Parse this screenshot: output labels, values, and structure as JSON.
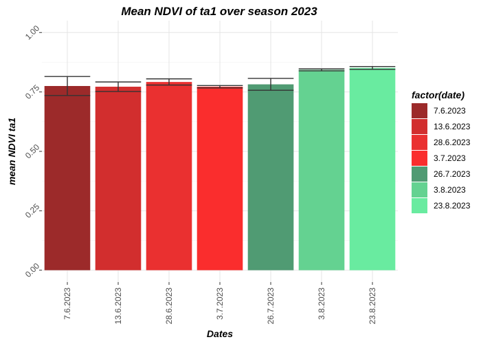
{
  "chart_data": {
    "type": "bar",
    "title": "Mean NDVI of ta1 over season 2023",
    "xlabel": "Dates",
    "ylabel": "mean NDVI ta1",
    "categories": [
      "7.6.2023",
      "13.6.2023",
      "28.6.2023",
      "3.7.2023",
      "26.7.2023",
      "3.8.2023",
      "23.8.2023"
    ],
    "values": [
      0.775,
      0.772,
      0.792,
      0.772,
      0.782,
      0.843,
      0.851
    ],
    "error_low": [
      0.735,
      0.752,
      0.779,
      0.767,
      0.757,
      0.839,
      0.845
    ],
    "error_high": [
      0.815,
      0.792,
      0.805,
      0.777,
      0.807,
      0.847,
      0.857
    ],
    "colors": [
      "#9C2A2A",
      "#D22E2E",
      "#EA3030",
      "#FA2D2D",
      "#509B73",
      "#64D291",
      "#69EBA0"
    ],
    "ylim": [
      0,
      1.0
    ],
    "yticks": [
      "0.00",
      "0.25",
      "0.50",
      "0.75",
      "1.00"
    ],
    "ytick_values": [
      0,
      0.25,
      0.5,
      0.75,
      1.0
    ],
    "legend": {
      "title": "factor(date)",
      "position": "right",
      "entries": [
        "7.6.2023",
        "13.6.2023",
        "28.6.2023",
        "3.7.2023",
        "26.7.2023",
        "3.8.2023",
        "23.8.2023"
      ]
    },
    "grid": true
  }
}
